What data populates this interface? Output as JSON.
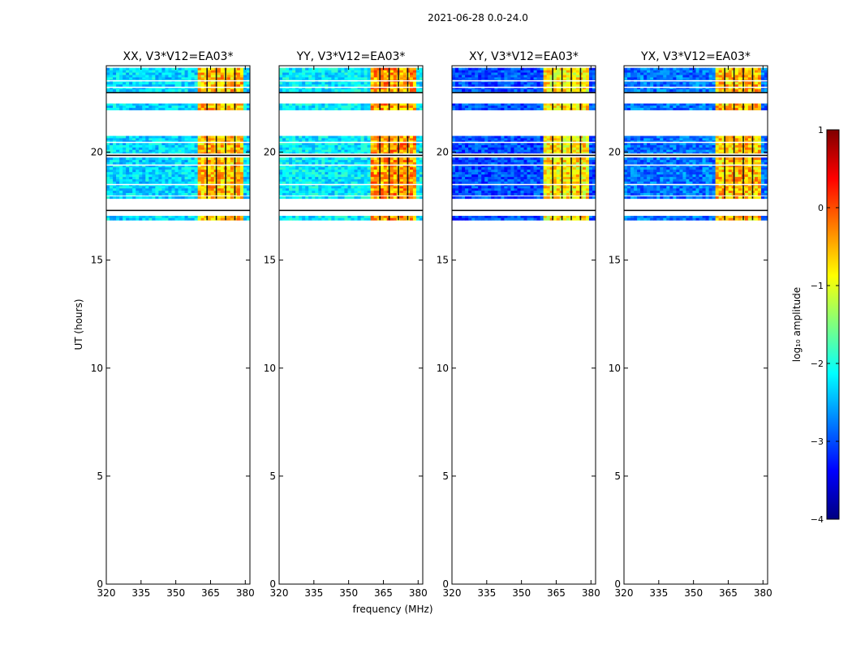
{
  "figure": {
    "suptitle": "2021-06-28 0.0-24.0",
    "xlabel": "frequency (MHz)",
    "ylabel": "UT (hours)"
  },
  "chart_data": {
    "type": "heatmap",
    "x_range": [
      320,
      382
    ],
    "y_range": [
      0,
      24
    ],
    "x_ticks": [
      320,
      335,
      350,
      365,
      380
    ],
    "y_ticks": [
      0,
      5,
      10,
      15,
      20
    ],
    "panels": [
      {
        "title": "XX, V3*V12=EA03*",
        "background_level": -2.3,
        "band_level": -0.8
      },
      {
        "title": "YY, V3*V12=EA03*",
        "background_level": -2.2,
        "band_level": -0.6
      },
      {
        "title": "XY, V3*V12=EA03*",
        "background_level": -3.0,
        "band_level": -1.0
      },
      {
        "title": "YX, V3*V12=EA03*",
        "background_level": -2.8,
        "band_level": -0.8
      }
    ],
    "data_time_blocks_hours": [
      [
        22.8,
        23.9
      ],
      [
        21.95,
        22.25
      ],
      [
        20.0,
        20.75
      ],
      [
        19.95,
        20.0
      ],
      [
        18.85,
        19.75
      ],
      [
        18.0,
        18.85
      ],
      [
        17.85,
        17.95
      ],
      [
        16.85,
        17.05
      ]
    ],
    "flagged_time_lines_hours": [
      23.3,
      23.0,
      20.45,
      19.4,
      18.5,
      17.65,
      17.5,
      16.6
    ],
    "rfi_band_MHz": [
      359.5,
      378.5
    ],
    "rfi_channel_gaps_MHz": [
      363.5,
      367.5,
      371.5,
      375.5
    ],
    "colorbar": {
      "label": "log₁₀ amplitude",
      "range": [
        -4,
        1
      ],
      "ticks": [
        -4,
        -3,
        -2,
        -1,
        0,
        1
      ],
      "tick_labels": [
        "−4",
        "−3",
        "−2",
        "−1",
        "0",
        "1"
      ],
      "colors": [
        "#00007f",
        "#0000ff",
        "#007fff",
        "#00ffff",
        "#7fff7f",
        "#ffff00",
        "#ff7f00",
        "#ff0000",
        "#7f0000"
      ]
    }
  }
}
